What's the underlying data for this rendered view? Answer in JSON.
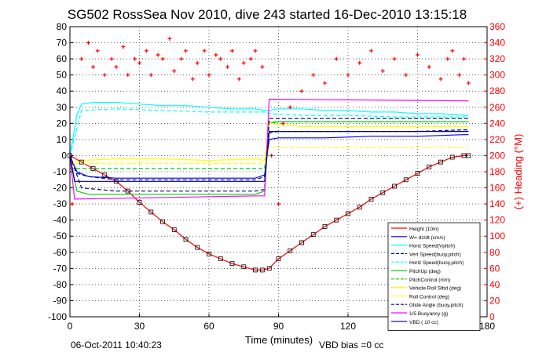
{
  "chart_data": {
    "type": "line",
    "title": "SG502 RossSea Nov 2010, dive 243 started 16-Dec-2010 13:15:18",
    "xlabel": "Time (minutes)",
    "ylabel": "",
    "y2label": "(+) Heading (°M)",
    "xlim": [
      0,
      180
    ],
    "ylim": [
      -100,
      80
    ],
    "y2lim": [
      0,
      360
    ],
    "xticks": [
      0,
      30,
      60,
      90,
      120,
      150,
      180
    ],
    "yticks": [
      -100,
      -90,
      -80,
      -70,
      -60,
      -50,
      -40,
      -30,
      -20,
      -10,
      0,
      10,
      20,
      30,
      40,
      50,
      60,
      70,
      80
    ],
    "y2ticks": [
      0,
      20,
      40,
      60,
      80,
      100,
      120,
      140,
      160,
      180,
      200,
      220,
      240,
      260,
      280,
      300,
      320,
      340,
      360
    ],
    "grid": true,
    "legend_position": "bottom-right",
    "footer_left": "06-Oct-2011 10:40:23",
    "footer_right": "VBD bias =0 cc",
    "colors": {
      "red": "#ff0000",
      "blue": "#0000ff",
      "cyan": "#00ffff",
      "green": "#00d000",
      "yellow": "#ffff00",
      "magenta": "#ff00ff",
      "navy": "#000080"
    },
    "series": [
      {
        "name": "Height (10m)",
        "color": "#ff0000",
        "style": "solid",
        "x": [
          0,
          5,
          10,
          15,
          20,
          25,
          30,
          35,
          40,
          45,
          50,
          55,
          60,
          65,
          70,
          75,
          80,
          83,
          86,
          90,
          95,
          100,
          105,
          110,
          115,
          120,
          125,
          130,
          135,
          140,
          145,
          150,
          155,
          160,
          165,
          170,
          172
        ],
        "y": [
          0,
          -4,
          -8,
          -12,
          -16,
          -22,
          -29,
          -35,
          -41,
          -46,
          -52,
          -57,
          -61,
          -64,
          -67,
          -69,
          -71,
          -71,
          -70,
          -64,
          -59,
          -54,
          -49,
          -44,
          -40,
          -36,
          -32,
          -27,
          -23,
          -19,
          -15,
          -11,
          -7,
          -4,
          -1,
          0,
          0
        ]
      },
      {
        "name": "W= dz/dt (cm/s)",
        "color": "#0000ff",
        "style": "solid",
        "x": [
          0,
          3,
          8,
          20,
          40,
          60,
          80,
          84,
          86,
          90,
          110,
          130,
          150,
          170,
          172
        ],
        "y": [
          0,
          -10,
          -13,
          -14,
          -14,
          -14,
          -14,
          -12,
          10,
          11,
          11,
          12,
          12,
          13,
          13
        ]
      },
      {
        "name": "Horiz Speed(Vpitch)",
        "color": "#00ffff",
        "style": "solid",
        "x": [
          0,
          3,
          5,
          10,
          20,
          30,
          40,
          50,
          60,
          70,
          80,
          84,
          86,
          90,
          100,
          110,
          120,
          130,
          140,
          150,
          160,
          170,
          172
        ],
        "y": [
          0,
          25,
          32,
          33,
          33,
          32,
          31,
          31,
          30,
          29,
          29,
          28,
          28,
          29,
          29,
          28,
          28,
          27,
          27,
          26,
          26,
          25,
          25
        ]
      },
      {
        "name": "Vert Speed(buoy,pitch)",
        "color": "#000080",
        "style": "dashed",
        "x": [
          0,
          3,
          8,
          20,
          40,
          60,
          80,
          84,
          86,
          90,
          110,
          130,
          150,
          170,
          172
        ],
        "y": [
          0,
          -11,
          -13,
          -15,
          -15,
          -15,
          -15,
          -13,
          14,
          15,
          15,
          15,
          15,
          16,
          16
        ]
      },
      {
        "name": "Horiz Speed(buoy,pitch)",
        "color": "#00ffff",
        "style": "dashed",
        "x": [
          0,
          5,
          20,
          40,
          60,
          80,
          84,
          86,
          100,
          120,
          140,
          160,
          172
        ],
        "y": [
          0,
          28,
          29,
          28,
          27,
          27,
          27,
          26,
          25,
          25,
          24,
          24,
          24
        ]
      },
      {
        "name": "PitchUp (deg)",
        "color": "#00d000",
        "style": "solid",
        "x": [
          0,
          3,
          8,
          20,
          40,
          60,
          80,
          84,
          86,
          90,
          110,
          130,
          150,
          170,
          172
        ],
        "y": [
          0,
          -22,
          -24,
          -24,
          -24,
          -24,
          -24,
          -22,
          20,
          21,
          21,
          21,
          21,
          21,
          21
        ]
      },
      {
        "name": "PitchControl (mm)",
        "color": "#00d000",
        "style": "dashed",
        "x": [
          0,
          8,
          80,
          84,
          86,
          172
        ],
        "y": [
          -8,
          -8,
          -8,
          -8,
          21,
          21
        ]
      },
      {
        "name": "Vehicle Roll Stbd (deg)",
        "color": "#ffff00",
        "style": "solid",
        "x": [
          0,
          5,
          20,
          40,
          60,
          80,
          84,
          86,
          100,
          120,
          140,
          160,
          172
        ],
        "y": [
          -5,
          -3,
          -2,
          -2,
          -3,
          -2,
          -3,
          20,
          18,
          18,
          18,
          18,
          18
        ]
      },
      {
        "name": "Roll Control (deg)",
        "color": "#ffff00",
        "style": "dashed",
        "x": [
          0,
          8,
          80,
          84,
          86,
          172
        ],
        "y": [
          -5,
          -5,
          -5,
          -5,
          5,
          5
        ]
      },
      {
        "name": "Glide Angle (buoy,pitch)",
        "color": "#000080",
        "style": "dashed",
        "x": [
          0,
          5,
          20,
          40,
          60,
          80,
          84,
          86,
          100,
          120,
          140,
          160,
          172
        ],
        "y": [
          0,
          -20,
          -22,
          -22,
          -22,
          -22,
          -21,
          23,
          23,
          23,
          23,
          23,
          23
        ]
      },
      {
        "name": "1/5 Buoyancy (g)",
        "color": "#ff00ff",
        "style": "solid",
        "x": [
          0,
          2,
          80,
          83,
          84,
          86,
          172
        ],
        "y": [
          0,
          -27,
          -25,
          -25,
          -25,
          35,
          34
        ]
      },
      {
        "name": "VBD ( 10 cc)",
        "color": "#000080",
        "style": "solid",
        "x": [
          0,
          2,
          80,
          83,
          84,
          86,
          172
        ],
        "y": [
          0,
          -16,
          -16,
          -16,
          -16,
          15,
          15
        ]
      },
      {
        "name": "(+) Heading (°M)",
        "color": "#ff0000",
        "style": "markers",
        "axis": "right",
        "x": [
          1,
          5,
          8,
          10,
          12,
          15,
          18,
          20,
          23,
          25,
          28,
          30,
          33,
          35,
          38,
          40,
          43,
          45,
          48,
          50,
          53,
          55,
          58,
          60,
          63,
          65,
          68,
          70,
          73,
          75,
          78,
          80,
          83,
          87,
          90,
          92,
          95,
          100,
          105,
          110,
          115,
          120,
          125,
          130,
          135,
          140,
          145,
          150,
          155,
          160,
          163,
          165,
          168,
          170,
          172
        ],
        "y": [
          140,
          320,
          340,
          310,
          330,
          300,
          320,
          310,
          335,
          300,
          320,
          315,
          330,
          300,
          325,
          320,
          345,
          305,
          320,
          330,
          295,
          315,
          330,
          300,
          325,
          320,
          310,
          330,
          295,
          315,
          320,
          330,
          310,
          200,
          140,
          240,
          260,
          280,
          300,
          290,
          320,
          300,
          315,
          330,
          305,
          320,
          300,
          325,
          310,
          295,
          320,
          330,
          300,
          320,
          290
        ]
      }
    ]
  }
}
